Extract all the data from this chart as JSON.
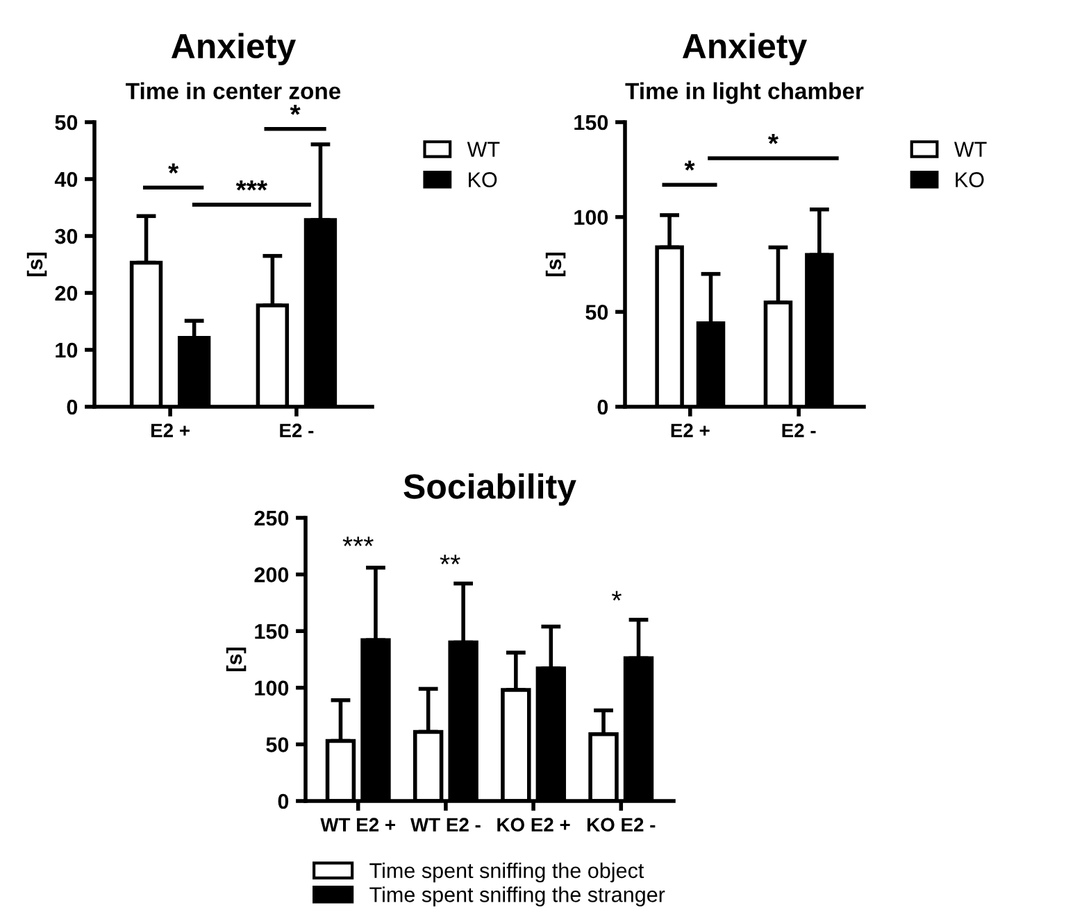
{
  "chart_data": [
    {
      "type": "bar",
      "title": "Anxiety",
      "subtitle": "Time in center zone",
      "ylabel": "[s]",
      "categories": [
        "E2 +",
        "E2 -"
      ],
      "series": [
        {
          "name": "WT",
          "color": "#ffffff",
          "values": [
            25.3,
            17.8
          ],
          "errors": [
            [
              25.3,
              33.5
            ],
            [
              17.8,
              26.5
            ]
          ]
        },
        {
          "name": "KO",
          "color": "#000000",
          "values": [
            12.1,
            32.8
          ],
          "errors": [
            [
              12.1,
              15.1
            ],
            [
              32.8,
              46.1
            ]
          ]
        }
      ],
      "ylim": [
        0,
        50
      ],
      "yticks": [
        0,
        10,
        20,
        30,
        40,
        50
      ],
      "legend": "right",
      "grid": false,
      "annotations": [
        "*",
        "***",
        "*"
      ]
    },
    {
      "type": "bar",
      "title": "Anxiety",
      "subtitle": "Time in light chamber",
      "ylabel": "[s]",
      "categories": [
        "E2 +",
        "E2 -"
      ],
      "series": [
        {
          "name": "WT",
          "color": "#ffffff",
          "values": [
            84,
            55
          ],
          "errors": [
            [
              84,
              101
            ],
            [
              55,
              84
            ]
          ]
        },
        {
          "name": "KO",
          "color": "#000000",
          "values": [
            44,
            80
          ],
          "errors": [
            [
              44,
              70
            ],
            [
              80,
              104
            ]
          ]
        }
      ],
      "ylim": [
        0,
        150
      ],
      "yticks": [
        0,
        50,
        100,
        150
      ],
      "legend": "right",
      "grid": false,
      "annotations": [
        "*",
        "*"
      ]
    },
    {
      "type": "bar",
      "title": "Sociability",
      "ylabel": "[s]",
      "categories": [
        "WT E2 +",
        "WT E2 -",
        "KO E2 +",
        "KO E2 -"
      ],
      "series": [
        {
          "name": "Time spent sniffing the object",
          "color": "#ffffff",
          "values": [
            53,
            61,
            98,
            59
          ],
          "errors": [
            [
              53,
              89
            ],
            [
              61,
              99
            ],
            [
              98,
              131
            ],
            [
              59,
              80
            ]
          ]
        },
        {
          "name": "Time spent sniffing the stranger",
          "color": "#000000",
          "values": [
            142,
            140,
            117,
            126
          ],
          "errors": [
            [
              142,
              206
            ],
            [
              140,
              192
            ],
            [
              117,
              154
            ],
            [
              126,
              160
            ]
          ]
        }
      ],
      "ylim": [
        0,
        250
      ],
      "yticks": [
        0,
        50,
        100,
        150,
        200,
        250
      ],
      "legend": "bottom",
      "grid": false,
      "annotations": [
        "***",
        "**",
        "*"
      ]
    }
  ]
}
